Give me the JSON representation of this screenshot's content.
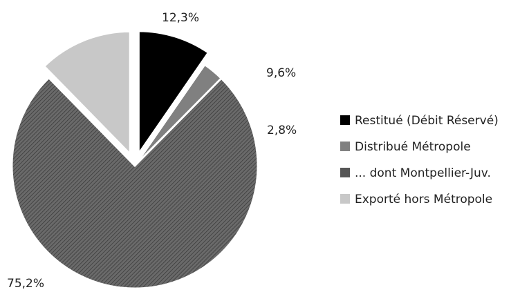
{
  "chart_data": {
    "type": "pie",
    "title": "",
    "legend_position": "right",
    "start_angle_deg": 0,
    "direction": "clockwise",
    "series": [
      {
        "name": "Restitué (Débit Réservé)",
        "value": 9.6,
        "label": "9,6%",
        "color": "#000000",
        "pattern": "solid",
        "exploded": true
      },
      {
        "name": "Distribué Métropole",
        "value": 2.8,
        "label": "2,8%",
        "color": "#808080",
        "pattern": "solid",
        "exploded": false
      },
      {
        "name": "... dont Montpellier-Juv.",
        "value": 75.2,
        "label": "75,2%",
        "color": "#555555",
        "pattern": "hatched",
        "exploded": false
      },
      {
        "name": "Exporté hors Métropole",
        "value": 12.3,
        "label": "12,3%",
        "color": "#c8c8c8",
        "pattern": "solid",
        "exploded": true
      }
    ]
  }
}
